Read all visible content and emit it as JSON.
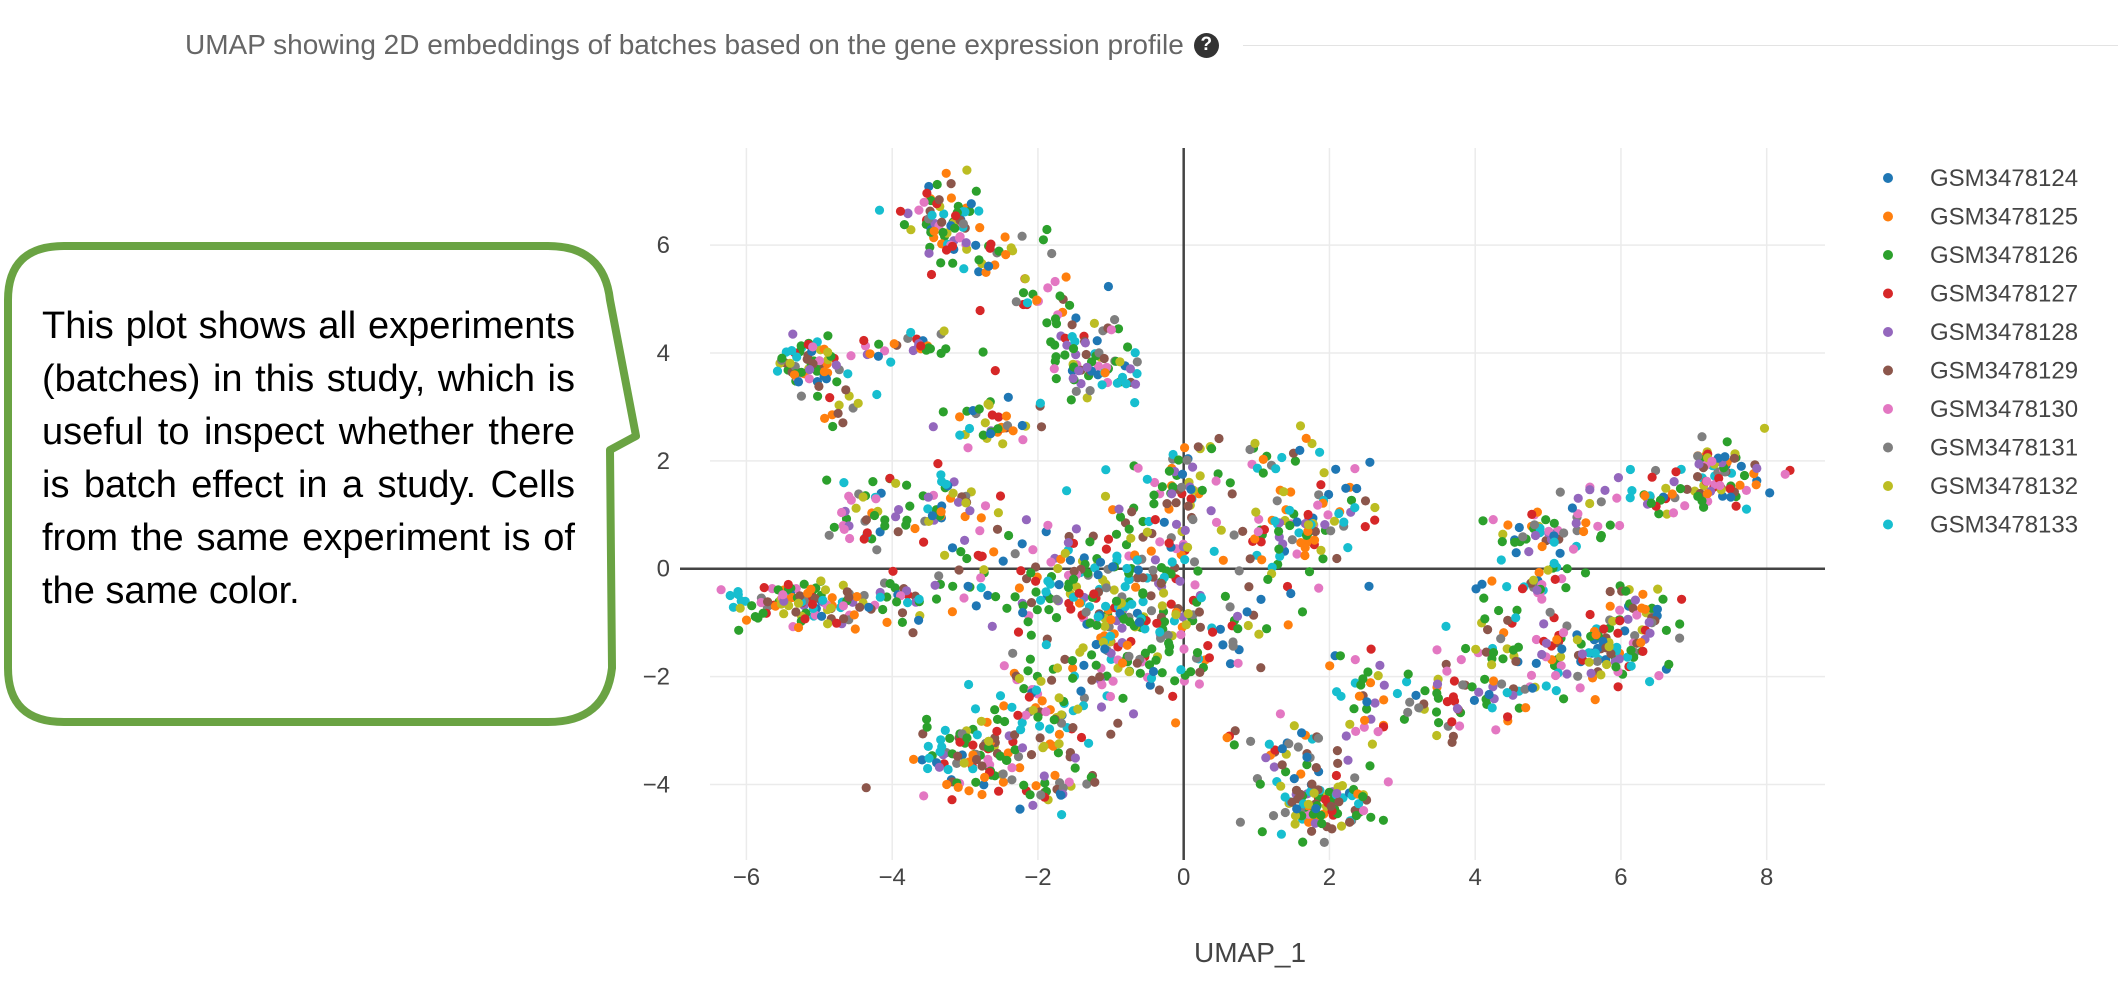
{
  "header": {
    "title": "UMAP showing 2D embeddings of batches based on the gene expression profile",
    "help_icon": "question-circle-icon"
  },
  "callout": {
    "text": "This plot shows all experiments (batches) in this study, which is useful to inspect whether there is batch effect in a study. Cells from the same experiment is of the same color.",
    "border_color": "#6aa343"
  },
  "chart_data": {
    "type": "scatter",
    "title": "",
    "xlabel": "UMAP_1",
    "ylabel": "",
    "xlim": [
      -6.5,
      8.8
    ],
    "ylim": [
      -5.4,
      7.8
    ],
    "x_ticks": [
      -6,
      -4,
      -2,
      0,
      2,
      4,
      6,
      8
    ],
    "y_ticks": [
      -4,
      -2,
      0,
      2,
      4,
      6
    ],
    "x_tick_labels": [
      "−6",
      "−4",
      "−2",
      "0",
      "2",
      "4",
      "6",
      "8"
    ],
    "y_tick_labels": [
      "−4",
      "−2",
      "0",
      "2",
      "4",
      "6"
    ],
    "grid": true,
    "zero_lines": true,
    "legend_position": "top-right",
    "series": [
      {
        "name": "GSM3478124",
        "color": "#1f77b4"
      },
      {
        "name": "GSM3478125",
        "color": "#ff7f0e"
      },
      {
        "name": "GSM3478126",
        "color": "#2ca02c"
      },
      {
        "name": "GSM3478127",
        "color": "#d62728"
      },
      {
        "name": "GSM3478128",
        "color": "#9467bd"
      },
      {
        "name": "GSM3478129",
        "color": "#8c564b"
      },
      {
        "name": "GSM3478130",
        "color": "#e377c2"
      },
      {
        "name": "GSM3478131",
        "color": "#7f7f7f"
      },
      {
        "name": "GSM3478132",
        "color": "#bcbd22"
      },
      {
        "name": "GSM3478133",
        "color": "#17becf"
      }
    ],
    "clusters": [
      {
        "cx": -3.3,
        "cy": 6.5,
        "sx": 0.25,
        "sy": 0.35,
        "n": 70
      },
      {
        "cx": -2.7,
        "cy": 5.9,
        "sx": 0.4,
        "sy": 0.25,
        "n": 30
      },
      {
        "cx": -2.0,
        "cy": 5.0,
        "sx": 0.3,
        "sy": 0.3,
        "n": 25
      },
      {
        "cx": -1.4,
        "cy": 4.3,
        "sx": 0.3,
        "sy": 0.3,
        "n": 25
      },
      {
        "cx": -1.1,
        "cy": 3.7,
        "sx": 0.3,
        "sy": 0.25,
        "n": 50
      },
      {
        "cx": -5.1,
        "cy": 3.8,
        "sx": 0.25,
        "sy": 0.25,
        "n": 60
      },
      {
        "cx": -4.7,
        "cy": 3.1,
        "sx": 0.2,
        "sy": 0.3,
        "n": 15
      },
      {
        "cx": -3.8,
        "cy": 4.1,
        "sx": 0.4,
        "sy": 0.15,
        "n": 30
      },
      {
        "cx": -5.3,
        "cy": -0.6,
        "sx": 0.45,
        "sy": 0.2,
        "n": 90
      },
      {
        "cx": -4.2,
        "cy": -0.6,
        "sx": 0.5,
        "sy": 0.25,
        "n": 50
      },
      {
        "cx": -4.3,
        "cy": 1.0,
        "sx": 0.3,
        "sy": 0.35,
        "n": 40
      },
      {
        "cx": -3.3,
        "cy": 1.2,
        "sx": 0.35,
        "sy": 0.3,
        "n": 40
      },
      {
        "cx": -2.5,
        "cy": 2.7,
        "sx": 0.35,
        "sy": 0.25,
        "n": 40
      },
      {
        "cx": -2.2,
        "cy": 0.0,
        "sx": 0.6,
        "sy": 0.6,
        "n": 70
      },
      {
        "cx": -1.0,
        "cy": -0.7,
        "sx": 0.55,
        "sy": 0.55,
        "n": 140
      },
      {
        "cx": -0.4,
        "cy": -1.5,
        "sx": 0.5,
        "sy": 0.5,
        "n": 90
      },
      {
        "cx": 0.0,
        "cy": 1.6,
        "sx": 0.3,
        "sy": 0.4,
        "n": 40
      },
      {
        "cx": -0.5,
        "cy": 0.6,
        "sx": 0.5,
        "sy": 0.5,
        "n": 60
      },
      {
        "cx": -2.8,
        "cy": -3.4,
        "sx": 0.45,
        "sy": 0.4,
        "n": 110
      },
      {
        "cx": -1.8,
        "cy": -2.5,
        "sx": 0.45,
        "sy": 0.5,
        "n": 80
      },
      {
        "cx": -1.7,
        "cy": -4.1,
        "sx": 0.3,
        "sy": 0.2,
        "n": 25
      },
      {
        "cx": 1.0,
        "cy": 2.1,
        "sx": 0.5,
        "sy": 0.3,
        "n": 30
      },
      {
        "cx": 1.5,
        "cy": 0.6,
        "sx": 0.4,
        "sy": 0.4,
        "n": 70
      },
      {
        "cx": 2.2,
        "cy": 1.0,
        "sx": 0.3,
        "sy": 0.5,
        "n": 25
      },
      {
        "cx": 0.8,
        "cy": -0.8,
        "sx": 0.5,
        "sy": 0.4,
        "n": 30
      },
      {
        "cx": 1.9,
        "cy": -4.4,
        "sx": 0.35,
        "sy": 0.3,
        "n": 110
      },
      {
        "cx": 1.5,
        "cy": -3.3,
        "sx": 0.5,
        "sy": 0.3,
        "n": 35
      },
      {
        "cx": 2.4,
        "cy": -2.4,
        "sx": 0.3,
        "sy": 0.5,
        "n": 25
      },
      {
        "cx": 3.8,
        "cy": -2.4,
        "sx": 0.6,
        "sy": 0.35,
        "n": 70
      },
      {
        "cx": 5.0,
        "cy": -1.6,
        "sx": 0.4,
        "sy": 0.3,
        "n": 40
      },
      {
        "cx": 5.9,
        "cy": -1.4,
        "sx": 0.35,
        "sy": 0.35,
        "n": 80
      },
      {
        "cx": 6.3,
        "cy": -0.7,
        "sx": 0.3,
        "sy": 0.3,
        "n": 30
      },
      {
        "cx": 4.9,
        "cy": 0.7,
        "sx": 0.35,
        "sy": 0.2,
        "n": 50
      },
      {
        "cx": 4.9,
        "cy": -0.2,
        "sx": 0.3,
        "sy": 0.3,
        "n": 25
      },
      {
        "cx": 7.4,
        "cy": 1.8,
        "sx": 0.3,
        "sy": 0.3,
        "n": 70
      },
      {
        "cx": 6.3,
        "cy": 1.3,
        "sx": 0.5,
        "sy": 0.25,
        "n": 40
      },
      {
        "cx": 4.3,
        "cy": -1.0,
        "sx": 0.4,
        "sy": 0.4,
        "n": 20
      }
    ]
  }
}
